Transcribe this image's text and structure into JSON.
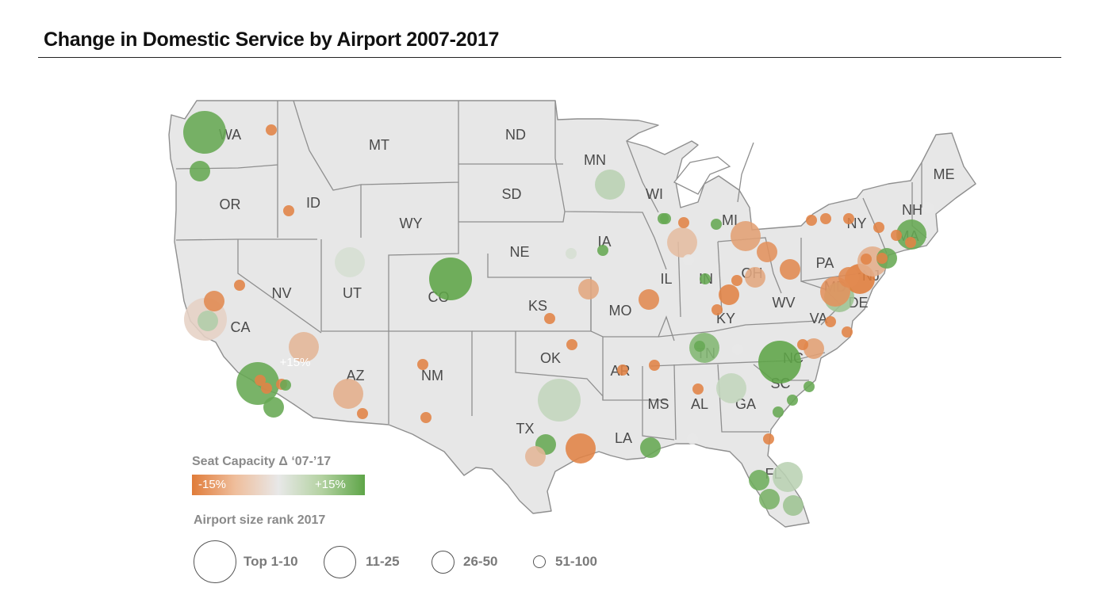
{
  "title": "Change in Domestic Service by Airport 2007-2017",
  "legend": {
    "color_title": "Seat Capacity Δ ‘07-’17",
    "color_min_label": "-15%",
    "color_max_label": "+15%",
    "color_scale": [
      "#e07c3a",
      "#e8e8e8",
      "#5ea548"
    ],
    "size_title": "Airport size rank 2017",
    "size_labels": [
      "Top 1-10",
      "11-25",
      "26-50",
      "51-100"
    ]
  },
  "states": [
    "WA",
    "MT",
    "ND",
    "MN",
    "ME",
    "OR",
    "ID",
    "SD",
    "WI",
    "NH",
    "WY",
    "IA",
    "MI",
    "NY",
    "MA",
    "NE",
    "IL",
    "IN",
    "OH",
    "PA",
    "NJ",
    "NV",
    "UT",
    "CO",
    "KS",
    "MO",
    "KY",
    "WV",
    "MD",
    "DE",
    "VA",
    "CA",
    "OK",
    "AR",
    "TN",
    "NC",
    "AZ",
    "NM",
    "SC",
    "MS",
    "AL",
    "GA",
    "TX",
    "LA",
    "FL"
  ],
  "bubble_note": "+15%",
  "airports": [
    {
      "rank_tier": "Top 1-10",
      "change_pct": 14
    },
    {
      "rank_tier": "Top 1-10",
      "change_pct": 15
    },
    {
      "rank_tier": "Top 1-10",
      "change_pct": 14
    },
    {
      "rank_tier": "Top 1-10",
      "change_pct": 15
    },
    {
      "rank_tier": "Top 1-10",
      "change_pct": -3
    },
    {
      "rank_tier": "Top 1-10",
      "change_pct": 4
    },
    {
      "rank_tier": "11-25",
      "change_pct": -7
    },
    {
      "rank_tier": "11-25",
      "change_pct": 5
    },
    {
      "rank_tier": "11-25",
      "change_pct": 2
    },
    {
      "rank_tier": "11-25",
      "change_pct": -8
    },
    {
      "rank_tier": "11-25",
      "change_pct": 14
    },
    {
      "rank_tier": "11-25",
      "change_pct": 11
    },
    {
      "rank_tier": "11-25",
      "change_pct": -10
    },
    {
      "rank_tier": "11-25",
      "change_pct": 8
    },
    {
      "rank_tier": "11-25",
      "change_pct": -6
    },
    {
      "rank_tier": "11-25",
      "change_pct": 5
    },
    {
      "rank_tier": "11-25",
      "change_pct": -14
    },
    {
      "rank_tier": "11-25",
      "change_pct": -15
    },
    {
      "rank_tier": "11-25",
      "change_pct": -12
    },
    {
      "rank_tier": "11-25",
      "change_pct": -8
    },
    {
      "rank_tier": "11-25",
      "change_pct": 4
    },
    {
      "rank_tier": "26-50",
      "change_pct": 14
    },
    {
      "rank_tier": "26-50",
      "change_pct": -12
    },
    {
      "rank_tier": "26-50",
      "change_pct": -13
    },
    {
      "rank_tier": "26-50",
      "change_pct": -9
    },
    {
      "rank_tier": "26-50",
      "change_pct": -14
    },
    {
      "rank_tier": "26-50",
      "change_pct": -13
    },
    {
      "rank_tier": "26-50",
      "change_pct": -9
    },
    {
      "rank_tier": "26-50",
      "change_pct": 14
    },
    {
      "rank_tier": "26-50",
      "change_pct": 14
    },
    {
      "rank_tier": "26-50",
      "change_pct": 8
    },
    {
      "rank_tier": "26-50",
      "change_pct": 14
    },
    {
      "rank_tier": "26-50",
      "change_pct": -13
    },
    {
      "rank_tier": "26-50",
      "change_pct": -7
    },
    {
      "rank_tier": "26-50",
      "change_pct": 12
    },
    {
      "rank_tier": "26-50",
      "change_pct": 6
    },
    {
      "rank_tier": "26-50",
      "change_pct": -10
    },
    {
      "rank_tier": "26-50",
      "change_pct": 14
    },
    {
      "rank_tier": "26-50",
      "change_pct": 13
    },
    {
      "rank_tier": "26-50",
      "change_pct": -13
    },
    {
      "rank_tier": "51-100",
      "change_pct": -14
    },
    {
      "rank_tier": "51-100",
      "change_pct": -14
    },
    {
      "rank_tier": "51-100",
      "change_pct": -14
    },
    {
      "rank_tier": "51-100",
      "change_pct": -14
    },
    {
      "rank_tier": "51-100",
      "change_pct": 2
    },
    {
      "rank_tier": "51-100",
      "change_pct": 14
    },
    {
      "rank_tier": "51-100",
      "change_pct": 14
    },
    {
      "rank_tier": "51-100",
      "change_pct": -14
    },
    {
      "rank_tier": "51-100",
      "change_pct": 14
    },
    {
      "rank_tier": "51-100",
      "change_pct": -14
    },
    {
      "rank_tier": "51-100",
      "change_pct": -14
    },
    {
      "rank_tier": "51-100",
      "change_pct": -14
    },
    {
      "rank_tier": "51-100",
      "change_pct": -14
    },
    {
      "rank_tier": "51-100",
      "change_pct": -14
    },
    {
      "rank_tier": "51-100",
      "change_pct": -14
    },
    {
      "rank_tier": "51-100",
      "change_pct": -14
    },
    {
      "rank_tier": "51-100",
      "change_pct": -14
    },
    {
      "rank_tier": "51-100",
      "change_pct": -14
    },
    {
      "rank_tier": "51-100",
      "change_pct": -14
    },
    {
      "rank_tier": "51-100",
      "change_pct": -14
    },
    {
      "rank_tier": "51-100",
      "change_pct": -14
    },
    {
      "rank_tier": "51-100",
      "change_pct": -14
    },
    {
      "rank_tier": "51-100",
      "change_pct": -14
    },
    {
      "rank_tier": "51-100",
      "change_pct": -14
    },
    {
      "rank_tier": "51-100",
      "change_pct": -14
    },
    {
      "rank_tier": "51-100",
      "change_pct": -14
    },
    {
      "rank_tier": "51-100",
      "change_pct": -14
    },
    {
      "rank_tier": "51-100",
      "change_pct": -14
    },
    {
      "rank_tier": "51-100",
      "change_pct": -14
    },
    {
      "rank_tier": "51-100",
      "change_pct": -14
    },
    {
      "rank_tier": "51-100",
      "change_pct": -14
    },
    {
      "rank_tier": "51-100",
      "change_pct": -14
    },
    {
      "rank_tier": "51-100",
      "change_pct": -14
    },
    {
      "rank_tier": "51-100",
      "change_pct": 14
    },
    {
      "rank_tier": "51-100",
      "change_pct": 14
    },
    {
      "rank_tier": "51-100",
      "change_pct": 14
    },
    {
      "rank_tier": "51-100",
      "change_pct": 14
    },
    {
      "rank_tier": "51-100",
      "change_pct": 14
    },
    {
      "rank_tier": "51-100",
      "change_pct": 14
    },
    {
      "rank_tier": "51-100",
      "change_pct": 14
    },
    {
      "rank_tier": "51-100",
      "change_pct": 0
    },
    {
      "rank_tier": "51-100",
      "change_pct": 0
    },
    {
      "rank_tier": "51-100",
      "change_pct": 0
    },
    {
      "rank_tier": "51-100",
      "change_pct": 0
    }
  ]
}
